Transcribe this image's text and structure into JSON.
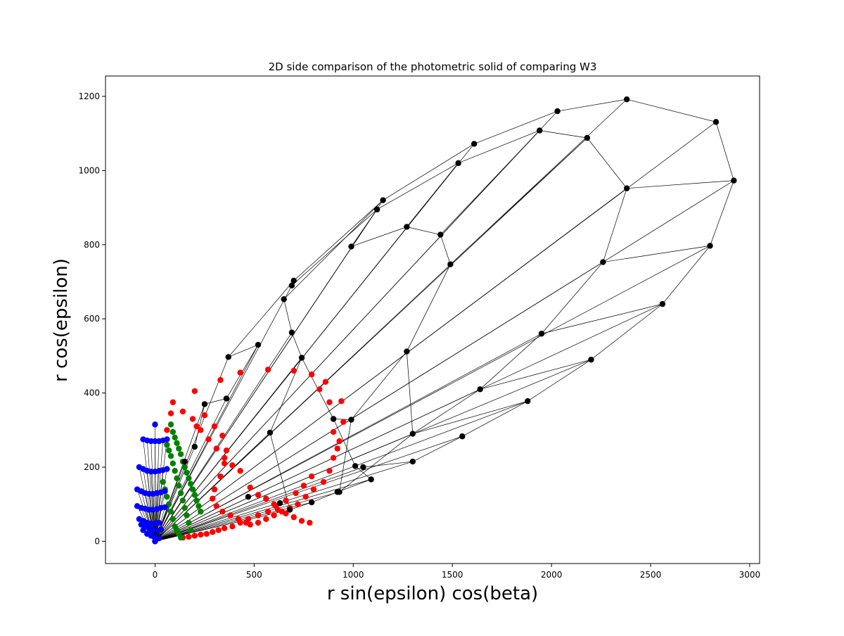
{
  "chart_data": {
    "type": "scatter",
    "title": "2D side comparison of the photometric solid of comparing W3",
    "xlabel": "r sin(epsilon) cos(beta)",
    "ylabel": "r cos(epsilon)",
    "xlim": [
      -250,
      3050
    ],
    "ylim": [
      -60,
      1255
    ],
    "xticks": [
      0,
      500,
      1000,
      1500,
      2000,
      2500,
      3000
    ],
    "yticks": [
      0,
      200,
      400,
      600,
      800,
      1000,
      1200
    ],
    "grid": false,
    "legend": "none",
    "colors": {
      "black": "#000000",
      "red": "#ff0000",
      "green": "#008000",
      "blue": "#0000ff"
    },
    "series": [
      {
        "color": "black",
        "connected": true,
        "x": [
          0,
          1050,
          1300,
          1550,
          1880,
          2200,
          2560,
          2800,
          2920,
          2830,
          2380,
          2030,
          1610,
          1150,
          690,
          700,
          370,
          0,
          930,
          1300,
          1640,
          1950,
          2260,
          2380,
          2180,
          1940,
          1530,
          1120,
          990,
          1270,
          1440,
          1490,
          1270,
          990,
          650,
          690,
          740,
          900,
          1010,
          1090,
          920,
          790,
          680,
          580,
          520,
          360,
          250,
          200,
          150,
          470,
          630
        ],
        "y": [
          0,
          200,
          215,
          283,
          378,
          490,
          640,
          797,
          973,
          1131,
          1192,
          1160,
          1072,
          920,
          690,
          703,
          497,
          0,
          133,
          290,
          410,
          560,
          753,
          952,
          1088,
          1108,
          1020,
          895,
          795,
          848,
          827,
          747,
          512,
          328,
          653,
          563,
          495,
          330,
          203,
          167,
          133,
          105,
          85,
          293,
          530,
          385,
          370,
          255,
          215,
          120,
          103
        ],
        "edges": [
          [
            0,
            1
          ],
          [
            0,
            2
          ],
          [
            0,
            3
          ],
          [
            0,
            4
          ],
          [
            0,
            5
          ],
          [
            0,
            6
          ],
          [
            0,
            7
          ],
          [
            0,
            8
          ],
          [
            0,
            9
          ],
          [
            0,
            10
          ],
          [
            0,
            11
          ],
          [
            0,
            12
          ],
          [
            0,
            13
          ],
          [
            0,
            14
          ],
          [
            0,
            16
          ],
          [
            0,
            18
          ],
          [
            0,
            19
          ],
          [
            0,
            20
          ],
          [
            0,
            21
          ],
          [
            0,
            22
          ],
          [
            0,
            23
          ],
          [
            0,
            24
          ],
          [
            0,
            25
          ],
          [
            0,
            26
          ],
          [
            0,
            27
          ],
          [
            0,
            35
          ],
          [
            0,
            36
          ],
          [
            0,
            39
          ],
          [
            0,
            41
          ],
          [
            0,
            42
          ],
          [
            0,
            43
          ],
          [
            0,
            44
          ],
          [
            0,
            45
          ],
          [
            0,
            46
          ],
          [
            0,
            47
          ],
          [
            0,
            48
          ],
          [
            1,
            2
          ],
          [
            2,
            3
          ],
          [
            3,
            4
          ],
          [
            4,
            5
          ],
          [
            5,
            6
          ],
          [
            6,
            7
          ],
          [
            7,
            8
          ],
          [
            8,
            9
          ],
          [
            9,
            10
          ],
          [
            10,
            11
          ],
          [
            11,
            12
          ],
          [
            12,
            13
          ],
          [
            13,
            15
          ],
          [
            15,
            16
          ],
          [
            18,
            19
          ],
          [
            19,
            20
          ],
          [
            20,
            21
          ],
          [
            21,
            22
          ],
          [
            22,
            23
          ],
          [
            23,
            24
          ],
          [
            24,
            25
          ],
          [
            25,
            26
          ],
          [
            26,
            27
          ],
          [
            27,
            14
          ],
          [
            28,
            29
          ],
          [
            29,
            30
          ],
          [
            30,
            31
          ],
          [
            31,
            32
          ],
          [
            32,
            33
          ],
          [
            28,
            27
          ],
          [
            29,
            26
          ],
          [
            30,
            25
          ],
          [
            31,
            24
          ],
          [
            23,
            8
          ],
          [
            22,
            7
          ],
          [
            21,
            6
          ],
          [
            20,
            5
          ],
          [
            19,
            4
          ],
          [
            13,
            34
          ],
          [
            34,
            35
          ],
          [
            35,
            36
          ],
          [
            36,
            37
          ],
          [
            33,
            37
          ],
          [
            32,
            19
          ],
          [
            33,
            18
          ],
          [
            37,
            38
          ],
          [
            38,
            39
          ],
          [
            39,
            40
          ],
          [
            40,
            41
          ],
          [
            41,
            42
          ],
          [
            42,
            43
          ],
          [
            43,
            36
          ],
          [
            44,
            16
          ],
          [
            45,
            44
          ],
          [
            46,
            45
          ],
          [
            47,
            46
          ]
        ]
      },
      {
        "color": "red",
        "connected": false,
        "x": [
          90,
          200,
          330,
          430,
          570,
          700,
          790,
          860,
          880,
          900,
          930,
          940,
          950,
          830,
          790,
          750,
          710,
          660,
          610,
          570,
          520,
          470,
          430,
          390,
          350,
          320,
          290,
          260,
          230,
          200,
          170,
          140,
          250,
          300,
          340,
          360,
          350,
          330,
          300,
          290,
          310,
          340,
          380,
          420,
          460,
          480,
          520,
          560,
          600,
          640,
          680,
          720,
          760,
          800,
          850,
          880,
          900,
          920,
          60,
          80,
          140,
          190,
          210,
          230,
          270,
          310,
          350,
          390,
          430,
          480,
          520,
          560,
          600,
          620,
          660,
          700,
          740,
          780
        ],
        "y": [
          375,
          405,
          435,
          455,
          463,
          460,
          450,
          430,
          375,
          295,
          270,
          378,
          322,
          410,
          175,
          150,
          130,
          110,
          95,
          80,
          70,
          60,
          50,
          40,
          35,
          30,
          25,
          20,
          18,
          15,
          12,
          10,
          340,
          310,
          285,
          245,
          210,
          175,
          140,
          115,
          95,
          80,
          70,
          60,
          50,
          45,
          50,
          60,
          70,
          80,
          90,
          100,
          120,
          140,
          160,
          190,
          225,
          250,
          300,
          345,
          350,
          330,
          310,
          300,
          275,
          250,
          225,
          205,
          190,
          145,
          125,
          115,
          100,
          85,
          75,
          65,
          55,
          50
        ]
      },
      {
        "color": "green",
        "connected": false,
        "x": [
          80,
          90,
          100,
          110,
          120,
          130,
          140,
          150,
          160,
          170,
          180,
          190,
          200,
          210,
          220,
          230,
          60,
          70,
          80,
          90,
          100,
          110,
          120,
          130,
          140,
          150,
          160,
          170,
          180,
          40,
          50,
          60,
          70,
          80,
          90,
          100,
          110,
          120,
          130
        ],
        "y": [
          315,
          295,
          280,
          265,
          250,
          235,
          215,
          200,
          185,
          170,
          155,
          140,
          125,
          110,
          95,
          80,
          260,
          245,
          230,
          210,
          190,
          170,
          150,
          130,
          110,
          90,
          70,
          50,
          30,
          160,
          140,
          120,
          100,
          80,
          60,
          40,
          30,
          20,
          10
        ]
      },
      {
        "color": "blue",
        "connected": false,
        "x": [
          0,
          -60,
          -40,
          -20,
          0,
          20,
          40,
          60,
          -80,
          -60,
          -40,
          -20,
          0,
          20,
          40,
          60,
          -90,
          -70,
          -50,
          -30,
          -10,
          10,
          30,
          50,
          -90,
          -70,
          -50,
          -30,
          -10,
          10,
          30,
          50,
          -80,
          -60,
          -40,
          -20,
          0,
          20,
          -70,
          -50,
          -30,
          -10,
          10,
          30,
          -60,
          -40,
          -20,
          0,
          20,
          -40,
          -20,
          0
        ],
        "y": [
          315,
          275,
          272,
          270,
          270,
          270,
          272,
          275,
          200,
          195,
          190,
          188,
          188,
          190,
          192,
          195,
          140,
          135,
          130,
          128,
          128,
          130,
          132,
          135,
          95,
          90,
          88,
          85,
          85,
          87,
          90,
          92,
          60,
          55,
          50,
          48,
          48,
          50,
          45,
          40,
          35,
          30,
          30,
          32,
          30,
          20,
          15,
          10,
          8,
          40,
          20,
          0
        ]
      }
    ]
  }
}
